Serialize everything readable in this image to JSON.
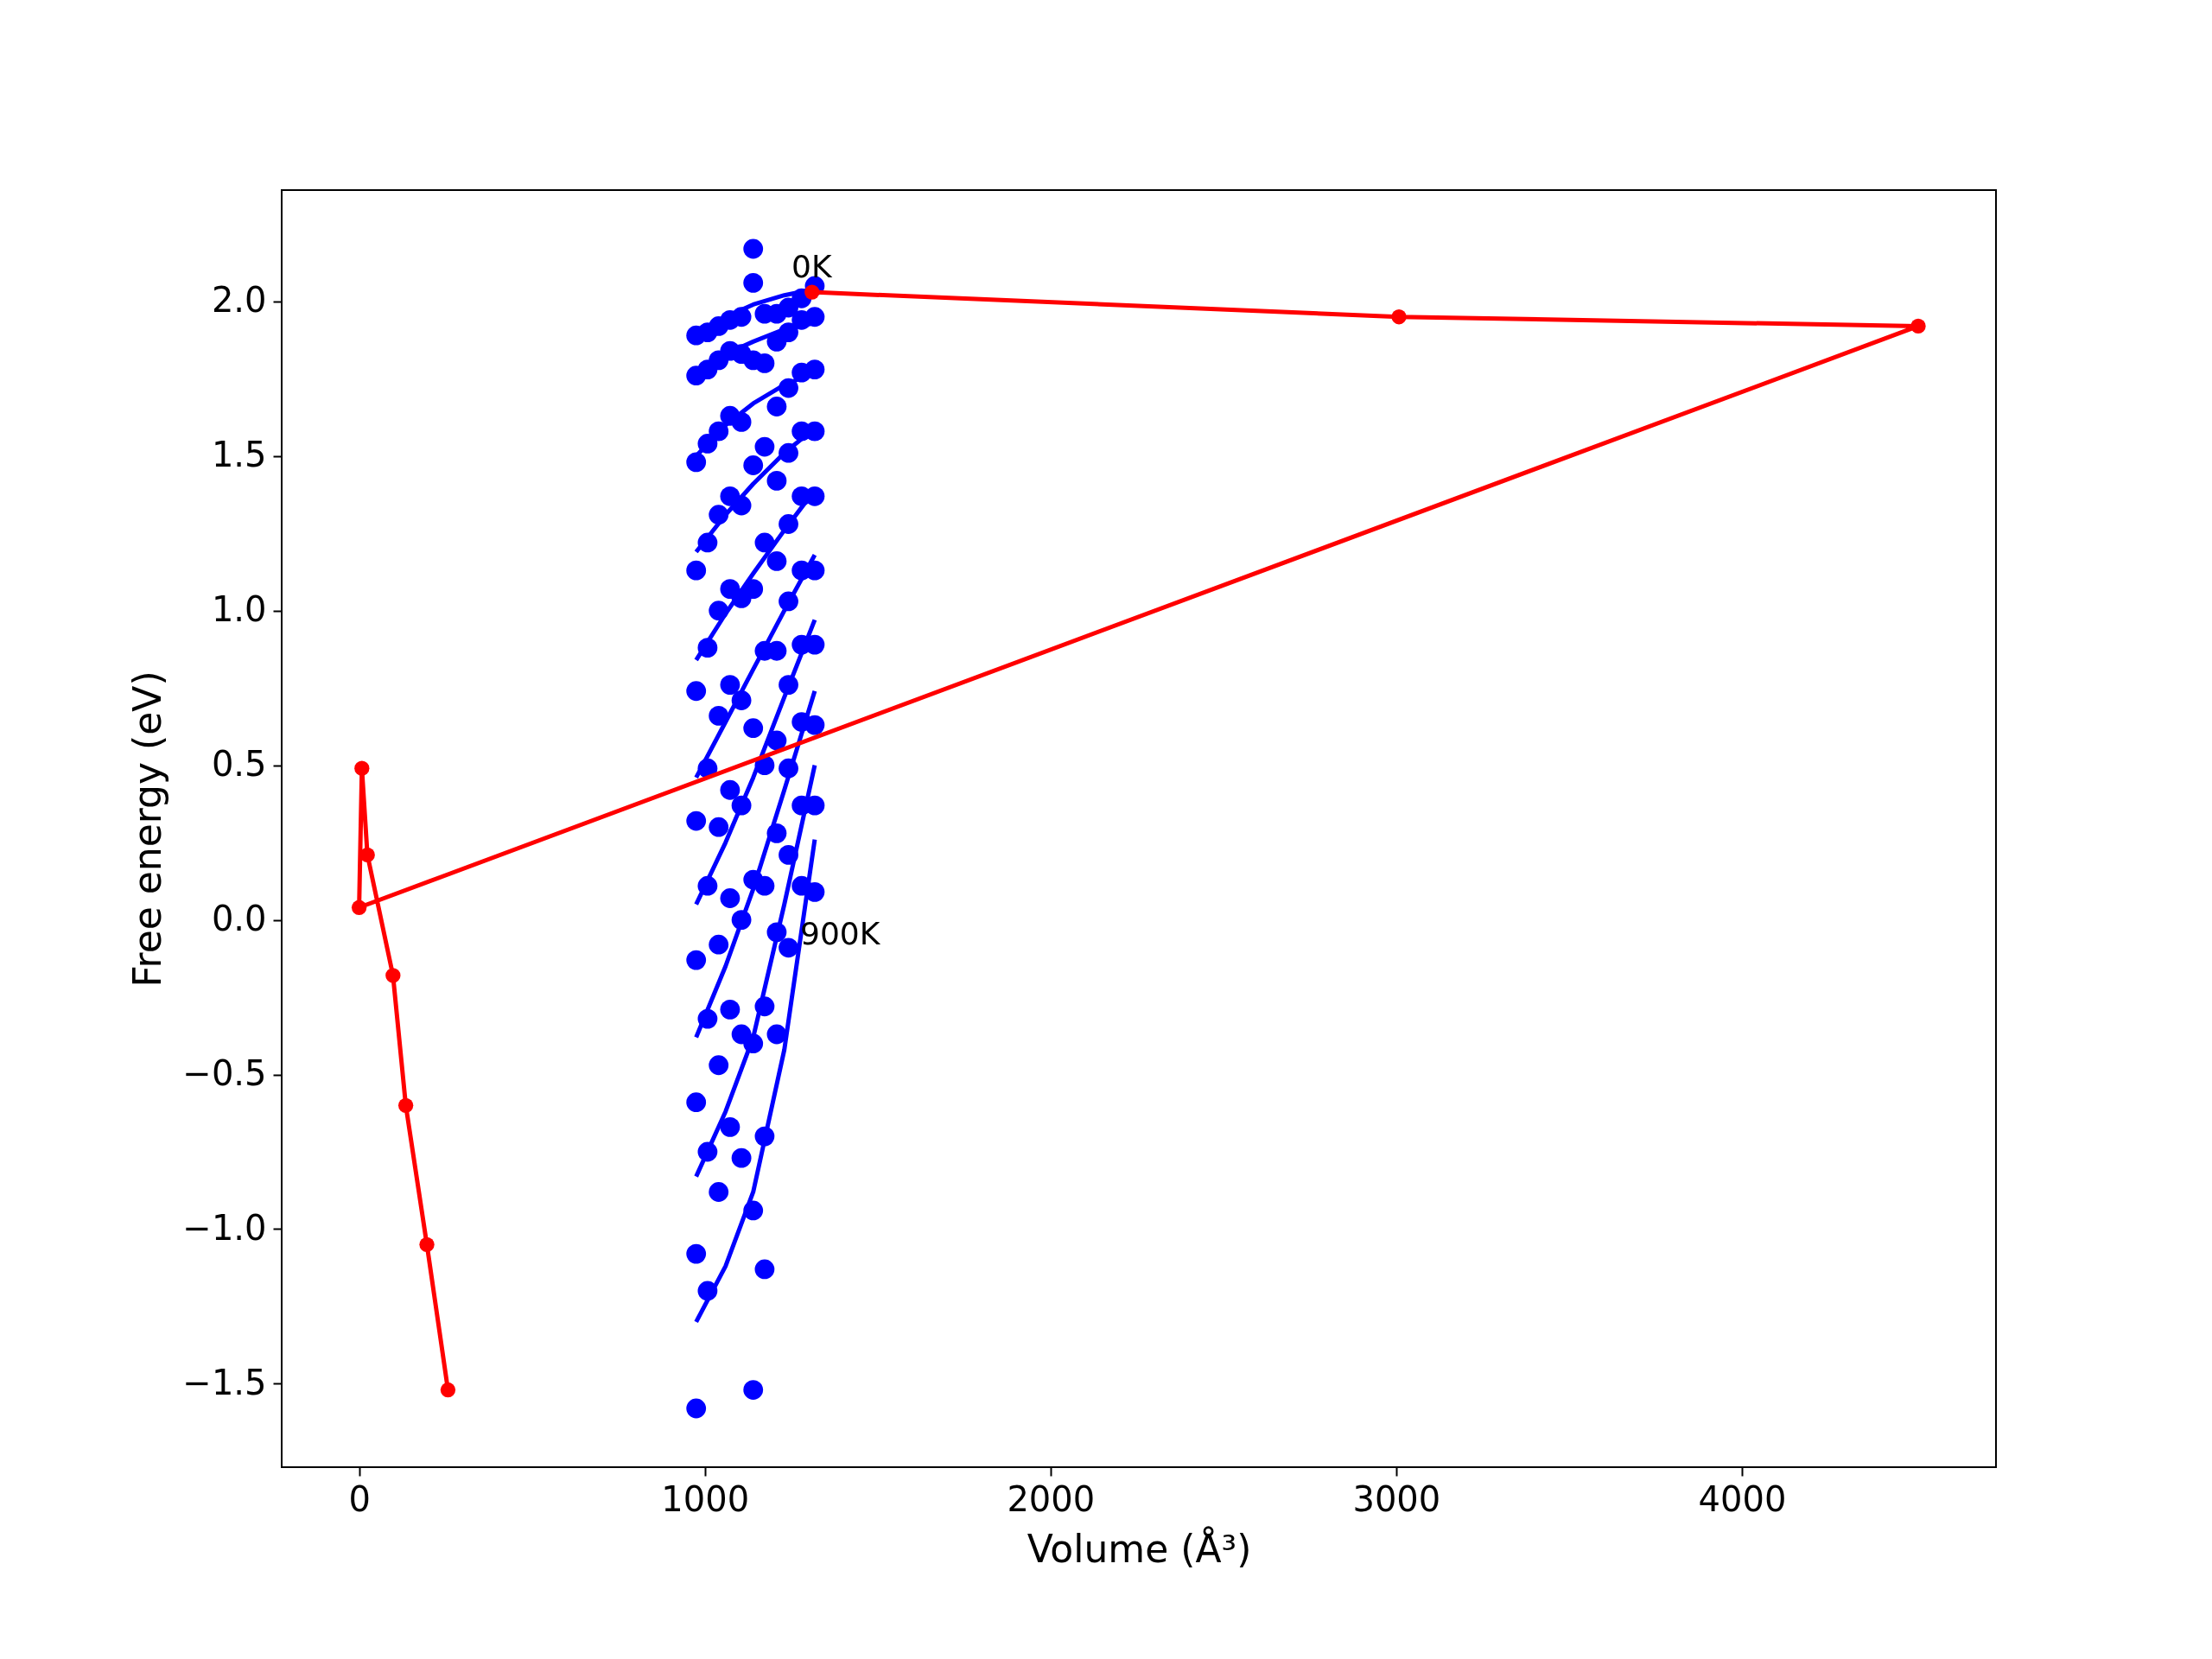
{
  "chart_data": {
    "type": "scatter",
    "xlabel": "Volume (Å³)",
    "ylabel": "Free energy (eV)",
    "xlim": [
      -224,
      4735
    ],
    "ylim": [
      -1.77,
      2.36
    ],
    "xticks": [
      0,
      1000,
      2000,
      3000,
      4000
    ],
    "yticks": [
      {
        "value": -1.5,
        "label": "−1.5"
      },
      {
        "value": -1.0,
        "label": "−1.0"
      },
      {
        "value": -0.5,
        "label": "−0.5"
      },
      {
        "value": 0.0,
        "label": "0.0"
      },
      {
        "value": 0.5,
        "label": "0.5"
      },
      {
        "value": 1.0,
        "label": "1.0"
      },
      {
        "value": 1.5,
        "label": "1.5"
      },
      {
        "value": 2.0,
        "label": "2.0"
      }
    ],
    "grid": false,
    "marker": "circle",
    "annotations": [
      "0K",
      "900K"
    ],
    "series": [
      {
        "color": "#0000ff",
        "x": [
          975,
          975,
          975,
          975,
          975,
          975,
          975,
          975,
          975,
          975,
          1008,
          1008,
          1008,
          1008,
          1008,
          1008,
          1008,
          1008,
          1008,
          1008,
          1040,
          1040,
          1040,
          1040,
          1040,
          1040,
          1040,
          1040,
          1040,
          1040,
          1073,
          1073,
          1073,
          1073,
          1073,
          1073,
          1073,
          1073,
          1073,
          1073,
          1106,
          1106,
          1106,
          1106,
          1106,
          1106,
          1106,
          1106,
          1106,
          1106,
          1140,
          1140,
          1140,
          1140,
          1140,
          1140,
          1140,
          1140,
          1140,
          1140,
          1173,
          1173,
          1173,
          1173,
          1173,
          1173,
          1173,
          1173,
          1173,
          1173,
          1208,
          1208,
          1208,
          1208,
          1208,
          1208,
          1208,
          1208,
          1208,
          1208,
          1242,
          1242,
          1242,
          1242,
          1242,
          1242,
          1242,
          1242,
          1242,
          1242,
          1280,
          1280,
          1280,
          1280,
          1280,
          1280,
          1280,
          1280,
          1280,
          1280,
          1318,
          1318,
          1318,
          1318,
          1318,
          1318,
          1318,
          1318,
          1318,
          1318
        ],
        "values": [
          1.89,
          1.76,
          1.48,
          1.13,
          0.74,
          0.32,
          -0.13,
          -0.59,
          -1.08,
          -1.58,
          1.9,
          1.78,
          1.54,
          1.22,
          0.88,
          0.49,
          0.11,
          -0.32,
          -0.75,
          -1.2,
          1.92,
          1.81,
          1.58,
          1.31,
          1.0,
          0.66,
          0.3,
          -0.08,
          -0.47,
          -0.88,
          1.94,
          1.84,
          1.63,
          1.37,
          1.07,
          0.76,
          0.42,
          0.07,
          -0.29,
          -0.67,
          1.95,
          1.83,
          1.61,
          1.34,
          1.04,
          0.71,
          0.37,
          0.0,
          -0.37,
          -0.77,
          2.17,
          2.06,
          1.81,
          1.47,
          1.07,
          0.62,
          0.13,
          -0.4,
          -0.94,
          -1.52,
          1.96,
          1.8,
          1.53,
          1.22,
          0.87,
          0.5,
          0.11,
          -0.28,
          -0.7,
          -1.13,
          1.96,
          1.87,
          1.66,
          1.42,
          1.16,
          0.87,
          0.58,
          0.28,
          -0.04,
          -0.37,
          1.98,
          1.9,
          1.72,
          1.51,
          1.28,
          1.03,
          0.76,
          0.49,
          0.21,
          -0.09,
          2.01,
          1.94,
          1.77,
          1.58,
          1.37,
          1.13,
          0.89,
          0.64,
          0.37,
          0.11,
          2.05,
          1.95,
          1.78,
          1.58,
          1.37,
          1.13,
          0.89,
          0.63,
          0.37,
          0.09
        ]
      },
      {
        "type": "line",
        "color": "#0000ff",
        "marker": "none",
        "x": [
          975,
          1060,
          1140,
          1230,
          1318
        ],
        "values": [
          1.88,
          1.95,
          1.99,
          2.02,
          2.04
        ]
      },
      {
        "type": "line",
        "color": "#0000ff",
        "marker": "none",
        "x": [
          975,
          1060,
          1140,
          1230,
          1318
        ],
        "values": [
          1.77,
          1.83,
          1.87,
          1.91,
          1.93
        ]
      },
      {
        "type": "line",
        "color": "#0000ff",
        "marker": "none",
        "x": [
          975,
          1060,
          1140,
          1230,
          1318
        ],
        "values": [
          1.5,
          1.6,
          1.67,
          1.73,
          1.77
        ]
      },
      {
        "type": "line",
        "color": "#0000ff",
        "marker": "none",
        "x": [
          975,
          1060,
          1140,
          1230,
          1318
        ],
        "values": [
          1.19,
          1.31,
          1.41,
          1.51,
          1.59
        ]
      },
      {
        "type": "line",
        "color": "#0000ff",
        "marker": "none",
        "x": [
          975,
          1060,
          1140,
          1230,
          1318
        ],
        "values": [
          0.84,
          0.99,
          1.12,
          1.26,
          1.39
        ]
      },
      {
        "type": "line",
        "color": "#0000ff",
        "marker": "none",
        "x": [
          975,
          1060,
          1140,
          1230,
          1318
        ],
        "values": [
          0.46,
          0.64,
          0.81,
          1.0,
          1.18
        ]
      },
      {
        "type": "line",
        "color": "#0000ff",
        "marker": "none",
        "x": [
          975,
          1060,
          1140,
          1230,
          1318
        ],
        "values": [
          0.05,
          0.25,
          0.46,
          0.72,
          0.97
        ]
      },
      {
        "type": "line",
        "color": "#0000ff",
        "marker": "none",
        "x": [
          975,
          1060,
          1140,
          1230,
          1318
        ],
        "values": [
          -0.38,
          -0.15,
          0.1,
          0.42,
          0.74
        ]
      },
      {
        "type": "line",
        "color": "#0000ff",
        "marker": "none",
        "x": [
          975,
          1060,
          1140,
          1230,
          1318
        ],
        "values": [
          -0.83,
          -0.62,
          -0.38,
          0.05,
          0.5
        ]
      },
      {
        "type": "line",
        "color": "#0000ff",
        "marker": "none",
        "x": [
          975,
          1060,
          1140,
          1230,
          1318
        ],
        "values": [
          -1.3,
          -1.12,
          -0.88,
          -0.42,
          0.26
        ]
      },
      {
        "type": "line",
        "color": "#ff0000",
        "marker": "circle",
        "x": [
          257,
          196,
          135,
          98,
          24,
          8,
          0,
          4510,
          3008,
          1310
        ],
        "values": [
          -1.52,
          -1.05,
          -0.6,
          -0.18,
          0.21,
          0.49,
          0.04,
          1.92,
          1.95,
          2.03
        ]
      }
    ]
  }
}
